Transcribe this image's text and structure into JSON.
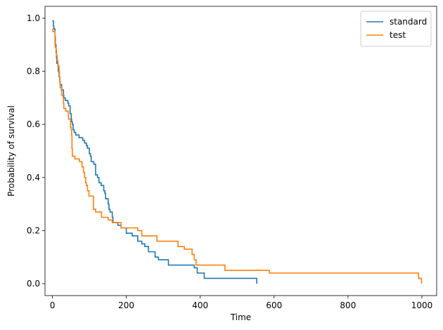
{
  "chart_data": {
    "type": "line",
    "step": "post",
    "xlabel": "Time",
    "ylabel": "Probability of survival",
    "xlim": [
      -20,
      1040
    ],
    "ylim": [
      -0.045,
      1.045
    ],
    "x_ticks": [
      0,
      200,
      400,
      600,
      800,
      1000
    ],
    "y_ticks": [
      0.0,
      0.2,
      0.4,
      0.6,
      0.8,
      1.0
    ],
    "x_tick_labels": [
      "0",
      "200",
      "400",
      "600",
      "800",
      "1000"
    ],
    "y_tick_labels": [
      "0.0",
      "0.2",
      "0.4",
      "0.6",
      "0.8",
      "1.0"
    ],
    "grid": false,
    "legend": "top-right",
    "series": [
      {
        "name": "standard",
        "color": "#1f77b4",
        "x": [
          0,
          3,
          4,
          7,
          8,
          10,
          11,
          12,
          15,
          16,
          18,
          20,
          21,
          25,
          30,
          31,
          35,
          42,
          44,
          48,
          51,
          52,
          54,
          56,
          59,
          63,
          72,
          82,
          87,
          92,
          95,
          100,
          103,
          105,
          112,
          117,
          122,
          126,
          132,
          139,
          142,
          144,
          151,
          153,
          156,
          162,
          164,
          177,
          186,
          200,
          216,
          231,
          242,
          250,
          260,
          278,
          287,
          314,
          340,
          384,
          392,
          411,
          467,
          553
        ],
        "y": [
          0.99,
          0.97,
          0.96,
          0.93,
          0.9,
          0.87,
          0.85,
          0.83,
          0.82,
          0.8,
          0.78,
          0.76,
          0.75,
          0.73,
          0.71,
          0.7,
          0.69,
          0.68,
          0.67,
          0.64,
          0.62,
          0.61,
          0.6,
          0.58,
          0.57,
          0.56,
          0.55,
          0.54,
          0.53,
          0.52,
          0.51,
          0.49,
          0.48,
          0.46,
          0.45,
          0.41,
          0.4,
          0.38,
          0.37,
          0.35,
          0.34,
          0.32,
          0.3,
          0.28,
          0.27,
          0.25,
          0.23,
          0.22,
          0.21,
          0.19,
          0.18,
          0.16,
          0.15,
          0.14,
          0.12,
          0.1,
          0.09,
          0.07,
          0.07,
          0.06,
          0.04,
          0.02,
          0.02,
          0.0
        ]
      },
      {
        "name": "test",
        "color": "#ff7f0e",
        "x": [
          0,
          1,
          7,
          8,
          10,
          11,
          13,
          15,
          18,
          19,
          20,
          21,
          24,
          25,
          29,
          30,
          31,
          36,
          43,
          44,
          49,
          51,
          52,
          53,
          54,
          61,
          73,
          80,
          84,
          87,
          90,
          92,
          95,
          99,
          103,
          111,
          112,
          117,
          123,
          133,
          140,
          143,
          151,
          162,
          164,
          186,
          201,
          231,
          242,
          283,
          340,
          357,
          378,
          384,
          389,
          467,
          587,
          991,
          999
        ],
        "y": [
          0.96,
          0.95,
          0.9,
          0.89,
          0.88,
          0.86,
          0.84,
          0.82,
          0.8,
          0.78,
          0.76,
          0.74,
          0.73,
          0.71,
          0.7,
          0.68,
          0.66,
          0.65,
          0.63,
          0.62,
          0.59,
          0.58,
          0.56,
          0.51,
          0.48,
          0.47,
          0.46,
          0.44,
          0.42,
          0.4,
          0.38,
          0.37,
          0.35,
          0.33,
          0.33,
          0.28,
          0.28,
          0.27,
          0.27,
          0.25,
          0.25,
          0.25,
          0.24,
          0.23,
          0.23,
          0.21,
          0.21,
          0.2,
          0.18,
          0.16,
          0.14,
          0.13,
          0.11,
          0.09,
          0.07,
          0.05,
          0.04,
          0.02,
          0.0
        ]
      }
    ]
  }
}
